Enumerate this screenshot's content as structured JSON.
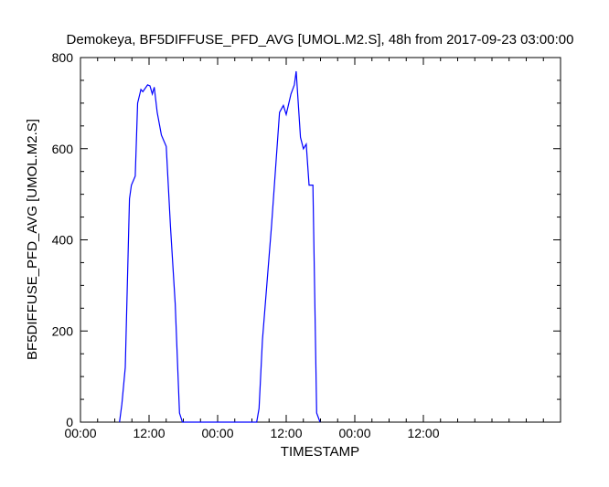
{
  "chart_data": {
    "type": "line",
    "title": "Demokeya, BF5DIFFUSE_PFD_AVG [UMOL.M2.S], 48h from  2017-09-23 03:00:00",
    "xlabel": "TIMESTAMP",
    "ylabel": "BF5DIFFUSE_PFD_AVG [UMOL.M2.S]",
    "xlim": [
      "2017-09-23 00:00",
      "2017-09-26 12:00"
    ],
    "ylim": [
      0,
      800
    ],
    "x_ticks": [
      "2017-09-23 00:00",
      "2017-09-23 12:00",
      "2017-09-24 00:00",
      "2017-09-24 12:00",
      "2017-09-25 00:00",
      "2017-09-25 12:00"
    ],
    "x_tick_labels": [
      "00:00",
      "12:00",
      "00:00",
      "12:00",
      "00:00",
      "12:00"
    ],
    "y_ticks": [
      0,
      200,
      400,
      600,
      800
    ],
    "y_tick_labels": [
      "0",
      "200",
      "400",
      "600",
      "800"
    ],
    "grid": false,
    "line_color": "#0000ff",
    "series": [
      {
        "x": [
          "2017-09-23 06:50",
          "2017-09-23 07:15",
          "2017-09-23 07:50",
          "2017-09-23 08:35",
          "2017-09-23 08:55",
          "2017-09-23 09:35",
          "2017-09-23 10:00",
          "2017-09-23 10:35",
          "2017-09-23 10:55",
          "2017-09-23 11:45",
          "2017-09-23 12:10",
          "2017-09-23 12:35",
          "2017-09-23 12:55",
          "2017-09-23 13:25",
          "2017-09-23 14:10",
          "2017-09-23 15:00",
          "2017-09-23 15:45",
          "2017-09-23 16:35",
          "2017-09-23 17:20",
          "2017-09-23 17:50",
          "2017-09-24 06:50",
          "2017-09-24 07:15",
          "2017-09-24 07:50",
          "2017-09-24 09:25",
          "2017-09-24 10:50",
          "2017-09-24 11:30",
          "2017-09-24 12:00",
          "2017-09-24 12:50",
          "2017-09-24 13:25",
          "2017-09-24 13:45",
          "2017-09-24 14:30",
          "2017-09-24 15:00",
          "2017-09-24 15:30",
          "2017-09-24 16:00",
          "2017-09-24 16:40",
          "2017-09-24 17:20",
          "2017-09-24 17:55"
        ],
        "values": [
          0,
          40,
          120,
          490,
          520,
          540,
          700,
          730,
          725,
          740,
          738,
          720,
          735,
          680,
          630,
          605,
          430,
          260,
          20,
          0,
          0,
          30,
          180,
          430,
          680,
          695,
          675,
          720,
          740,
          770,
          625,
          600,
          610,
          520,
          520,
          20,
          0
        ]
      }
    ]
  }
}
